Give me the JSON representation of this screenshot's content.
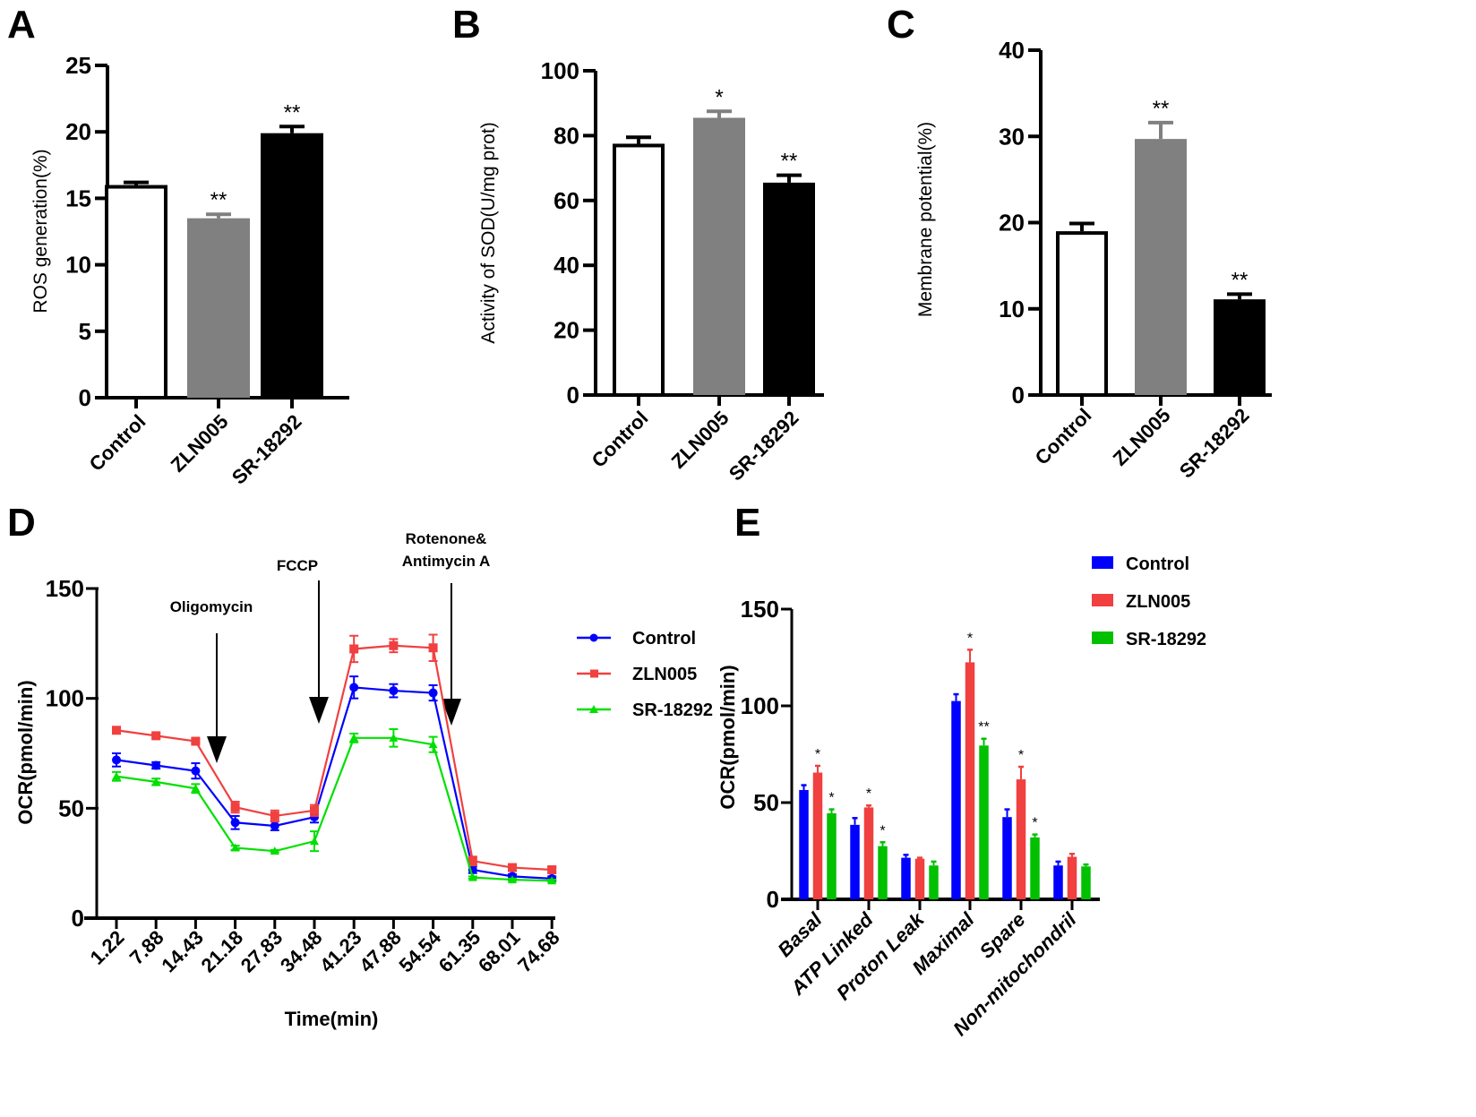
{
  "chart_data": [
    {
      "panel": "A",
      "type": "bar",
      "title": "",
      "xlabel": "",
      "ylabel": "ROS generation(%)",
      "ylim": [
        0,
        25
      ],
      "yticks": [
        0,
        5,
        10,
        15,
        20,
        25
      ],
      "categories": [
        "Control",
        "ZLN005",
        "SR-18292"
      ],
      "values": [
        16.0,
        13.5,
        19.9
      ],
      "errors": [
        0.2,
        0.3,
        0.5
      ],
      "significance": [
        "",
        "**",
        "**"
      ],
      "bar_styles": [
        "white-outlined",
        "gray",
        "black"
      ],
      "grid": false
    },
    {
      "panel": "B",
      "type": "bar",
      "title": "",
      "xlabel": "",
      "ylabel": "Activity of SOD(U/mg prot)",
      "ylim": [
        0,
        100
      ],
      "yticks": [
        0,
        20,
        40,
        60,
        80,
        100
      ],
      "categories": [
        "Control",
        "ZLN005",
        "SR-18292"
      ],
      "values": [
        77.5,
        85.5,
        65.5
      ],
      "errors": [
        2.0,
        2.0,
        2.3
      ],
      "significance": [
        "",
        "*",
        "**"
      ],
      "bar_styles": [
        "white-outlined",
        "gray",
        "black"
      ],
      "grid": false
    },
    {
      "panel": "C",
      "type": "bar",
      "title": "",
      "xlabel": "",
      "ylabel": "Membrane potential(%)",
      "ylim": [
        0,
        40
      ],
      "yticks": [
        0,
        10,
        20,
        30,
        40
      ],
      "categories": [
        "Control",
        "ZLN005",
        "SR-18292"
      ],
      "values": [
        19.0,
        29.7,
        11.1
      ],
      "errors": [
        0.9,
        1.9,
        0.6
      ],
      "significance": [
        "",
        "**",
        "**"
      ],
      "bar_styles": [
        "white-outlined",
        "gray",
        "black"
      ],
      "grid": false
    },
    {
      "panel": "D",
      "type": "line",
      "title": "",
      "xlabel": "Time(min)",
      "ylabel": "OCR(pmol/min)",
      "ylim": [
        0,
        150
      ],
      "yticks": [
        0,
        50,
        100,
        150
      ],
      "x": [
        "1.22",
        "7.88",
        "14.43",
        "21.18",
        "27.83",
        "34.48",
        "41.23",
        "47.88",
        "54.54",
        "61.35",
        "68.01",
        "74.68"
      ],
      "series": [
        {
          "name": "Control",
          "color": "#0000ff",
          "marker": "circle",
          "values": [
            72,
            69.5,
            67,
            43.5,
            42,
            46,
            105,
            103.5,
            102.5,
            22,
            19,
            18
          ],
          "errors": [
            3,
            1.5,
            3.5,
            3,
            2,
            2.5,
            5,
            3,
            3.5,
            1.5,
            1,
            1
          ]
        },
        {
          "name": "ZLN005",
          "color": "#f04040",
          "marker": "square",
          "values": [
            85.5,
            83,
            80.5,
            50.5,
            46.5,
            49,
            122.5,
            124,
            123,
            26,
            23,
            22
          ],
          "errors": [
            1.5,
            1,
            1,
            2.5,
            2.5,
            2.5,
            6,
            3,
            6,
            2,
            1.5,
            1
          ]
        },
        {
          "name": "SR-18292",
          "color": "#00e000",
          "marker": "triangle",
          "values": [
            64.5,
            62,
            59,
            32,
            30.5,
            35,
            82,
            82,
            79,
            18.5,
            17.5,
            17
          ],
          "errors": [
            2,
            1.5,
            2,
            1,
            0.5,
            4.5,
            2,
            4,
            3.5,
            0.5,
            0.5,
            0.5
          ]
        }
      ],
      "annotations": [
        {
          "label": "Oligomycin",
          "between": [
            "14.43",
            "21.18"
          ]
        },
        {
          "label": "FCCP",
          "between": [
            "34.48",
            "41.23"
          ]
        },
        {
          "label": "Rotenone& Antimycin A",
          "between": [
            "54.54",
            "61.35"
          ]
        }
      ],
      "legend": "right",
      "grid": false
    },
    {
      "panel": "E",
      "type": "bar",
      "title": "",
      "xlabel": "",
      "ylabel": "OCR(pmol/min)",
      "ylim": [
        0,
        150
      ],
      "yticks": [
        0,
        50,
        100,
        150
      ],
      "categories": [
        "Basal",
        "ATP Linked",
        "Proton Leak",
        "Maximal",
        "Spare",
        "Non-mitochondril"
      ],
      "series": [
        {
          "name": "Control",
          "color": "#0000ff",
          "values": [
            56.5,
            38.5,
            21.5,
            102.5,
            42.5,
            17.5
          ],
          "errors": [
            2.5,
            3.5,
            1.5,
            3.5,
            4,
            2
          ],
          "significance": [
            "",
            "",
            "",
            "",
            "",
            ""
          ]
        },
        {
          "name": "ZLN005",
          "color": "#f04040",
          "values": [
            65.5,
            47.5,
            21,
            122.5,
            62,
            22
          ],
          "errors": [
            3.5,
            1,
            0.5,
            6.5,
            6.5,
            1.5
          ],
          "significance": [
            "*",
            "*",
            "",
            "*",
            "*",
            ""
          ]
        },
        {
          "name": "SR-18292",
          "color": "#00c000",
          "values": [
            44.5,
            27.5,
            17.5,
            79.5,
            32,
            17
          ],
          "errors": [
            2,
            2,
            2,
            3.5,
            1.5,
            1
          ],
          "significance": [
            "*",
            "*",
            "",
            "**",
            "*",
            ""
          ]
        }
      ],
      "legend": "top-right",
      "grid": false
    }
  ],
  "panel_labels": [
    "A",
    "B",
    "C",
    "D",
    "E"
  ]
}
